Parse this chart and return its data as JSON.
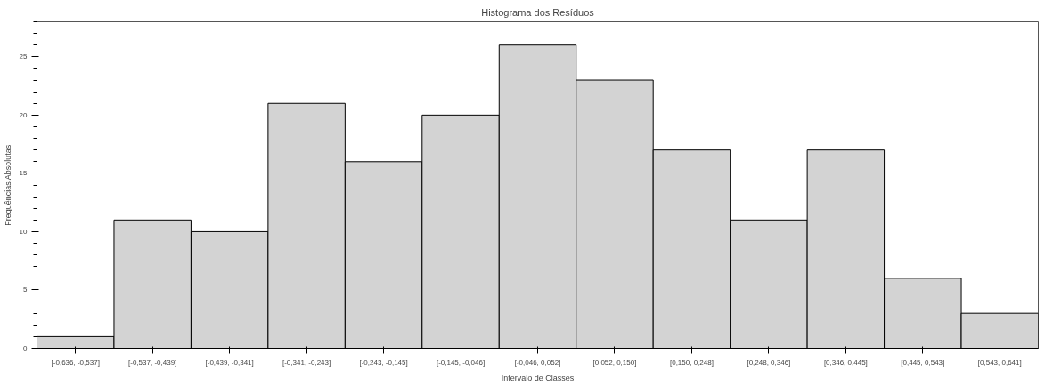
{
  "chart_data": {
    "type": "bar",
    "title": "Histograma dos Resíduos",
    "xlabel": "Intervalo de Classes",
    "ylabel": "Frequências Absolutas",
    "categories": [
      "[-0,636, -0,537]",
      "[-0,537, -0,439]",
      "[-0,439, -0,341]",
      "[-0,341, -0,243]",
      "[-0,243, -0,145]",
      "[-0,145, -0,046]",
      "[-0,046, 0,052]",
      "[0,052, 0,150]",
      "[0,150, 0,248]",
      "[0,248, 0,346]",
      "[0,346, 0,445]",
      "[0,445, 0,543]",
      "[0,543, 0,641]"
    ],
    "values": [
      1,
      11,
      10,
      21,
      16,
      20,
      26,
      23,
      17,
      11,
      17,
      6,
      3
    ],
    "color": "#d3d3d3",
    "ylim": [
      0,
      28
    ],
    "yticks": [
      0,
      5,
      10,
      15,
      20,
      25
    ],
    "grid": false
  }
}
